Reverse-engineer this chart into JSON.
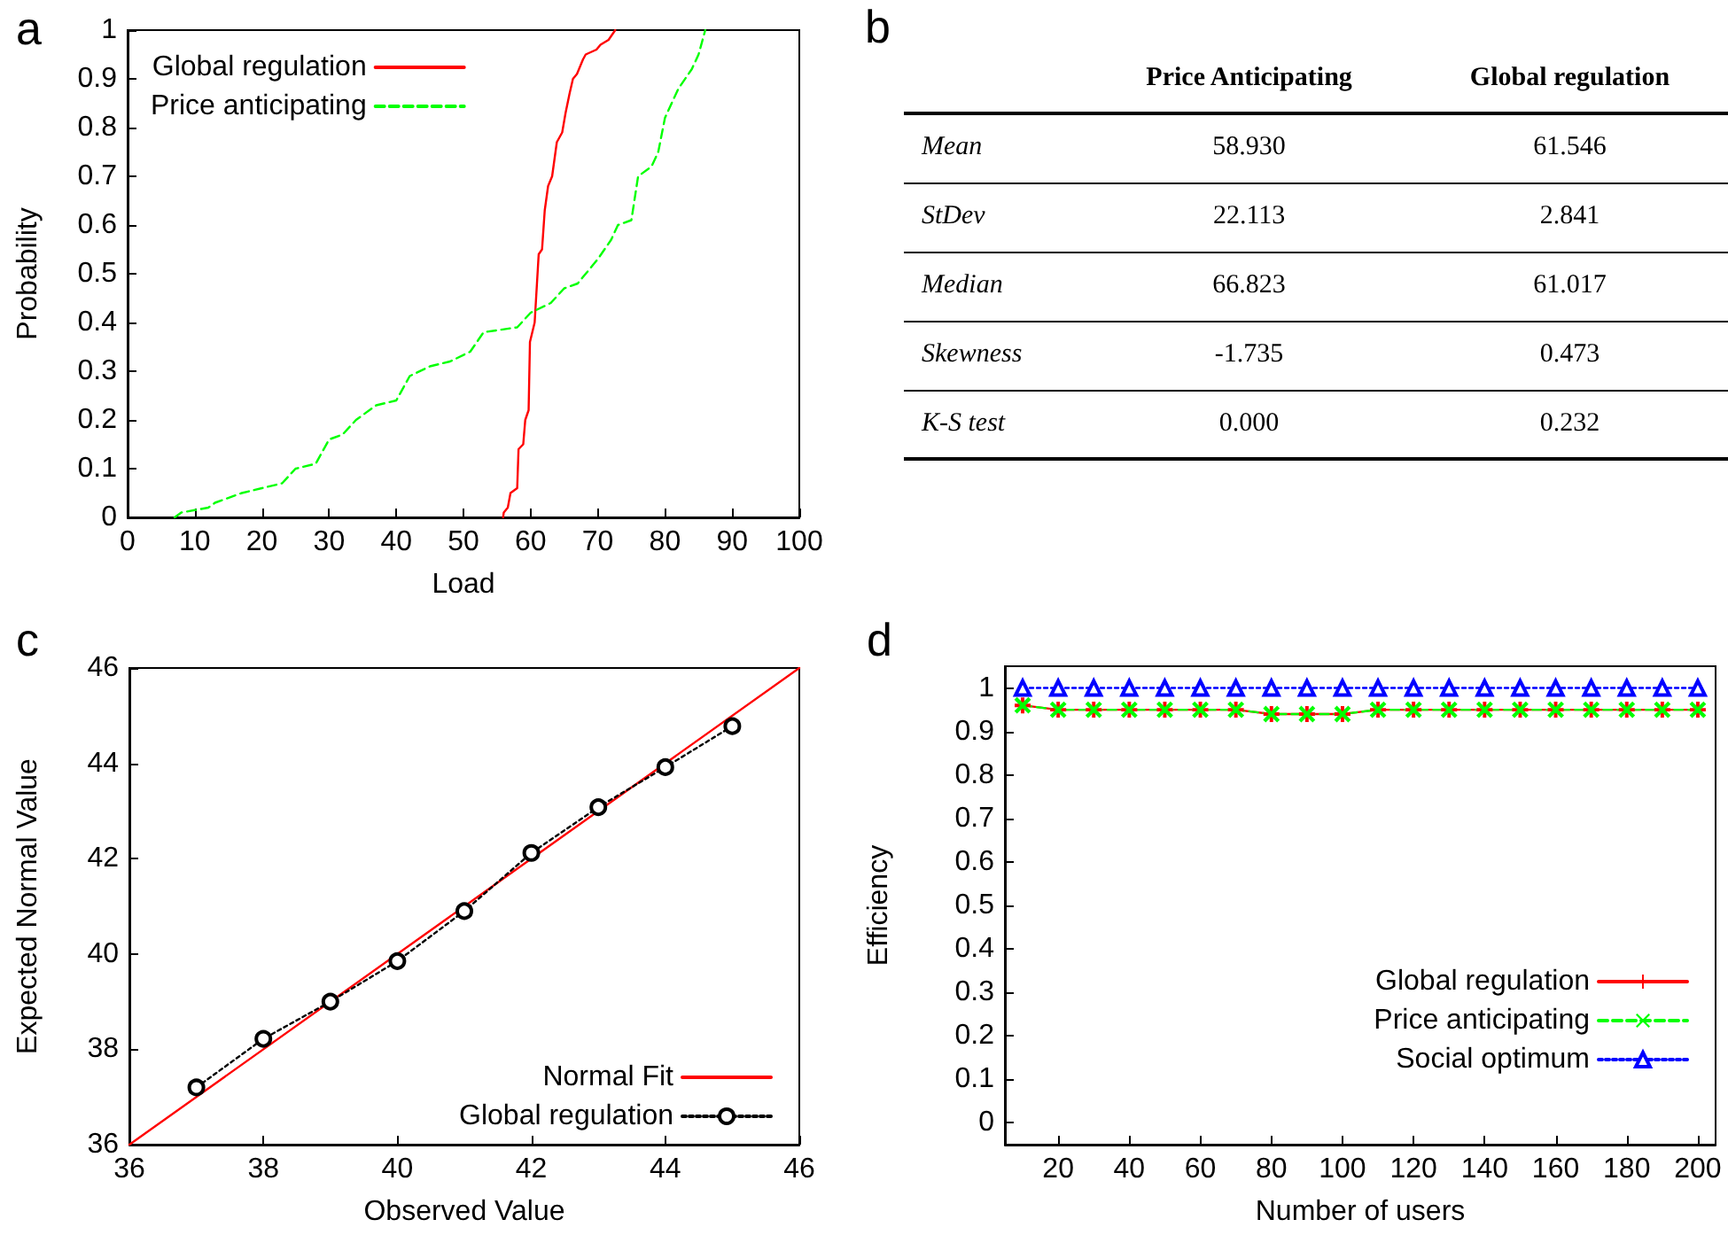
{
  "chart_data": [
    {
      "type": "line",
      "title": "a",
      "xlabel": "Load",
      "ylabel": "Probability",
      "xlim": [
        0,
        100
      ],
      "xticks": [
        0,
        10,
        20,
        30,
        40,
        50,
        60,
        70,
        80,
        90,
        100
      ],
      "ylim": [
        0,
        1
      ],
      "yticks": [
        0,
        0.1,
        0.2,
        0.3,
        0.4,
        0.5,
        0.6,
        0.7,
        0.8,
        0.9,
        1
      ],
      "grid": false,
      "legend": "top left",
      "marker": "none",
      "series": [
        {
          "name": "Global regulation",
          "color": "#ff0000",
          "line_style": "solid",
          "x": [
            55.9,
            56,
            56.6,
            57,
            58,
            58.2,
            58.9,
            59.2,
            59.7,
            59.9,
            60.6,
            61.2,
            61.7,
            62.1,
            62.6,
            63.2,
            63.9,
            64.7,
            65.2,
            65.8,
            66.3,
            66.9,
            67.8,
            68.2,
            69.8,
            70.4,
            71.6,
            72.6
          ],
          "values": [
            0,
            0.01,
            0.02,
            0.05,
            0.06,
            0.14,
            0.15,
            0.2,
            0.22,
            0.36,
            0.4,
            0.54,
            0.55,
            0.63,
            0.68,
            0.7,
            0.77,
            0.79,
            0.83,
            0.87,
            0.9,
            0.91,
            0.94,
            0.95,
            0.96,
            0.97,
            0.98,
            1
          ]
        },
        {
          "name": "Price anticipating",
          "color": "#00ff00",
          "line_style": "dashed",
          "x": [
            7,
            8,
            12,
            13,
            17,
            20,
            23,
            25,
            28,
            30,
            32,
            34,
            37,
            40,
            42,
            45,
            48,
            51,
            53,
            58,
            60,
            63,
            65,
            67,
            70,
            72,
            73,
            75,
            76,
            78,
            79,
            80,
            81,
            82,
            84,
            85,
            86
          ],
          "values": [
            0,
            0.01,
            0.02,
            0.03,
            0.05,
            0.06,
            0.07,
            0.1,
            0.11,
            0.16,
            0.17,
            0.2,
            0.23,
            0.24,
            0.29,
            0.31,
            0.32,
            0.34,
            0.38,
            0.39,
            0.42,
            0.44,
            0.47,
            0.48,
            0.53,
            0.57,
            0.6,
            0.61,
            0.7,
            0.72,
            0.75,
            0.82,
            0.85,
            0.88,
            0.92,
            0.95,
            1
          ]
        }
      ]
    },
    {
      "type": "other",
      "title": "b",
      "categories": [
        "Mean",
        "StDev",
        "Median",
        "Skewness",
        "K-S test"
      ],
      "series": [
        {
          "name": "Price Anticipating",
          "values": [
            58.93,
            22.113,
            66.823,
            -1.735,
            0
          ],
          "value_labels": [
            "58.930",
            "22.113",
            "66.823",
            "-1.735",
            "0.000"
          ]
        },
        {
          "name": "Global regulation",
          "values": [
            61.546,
            2.841,
            61.017,
            0.473,
            0.232
          ],
          "value_labels": [
            "61.546",
            "2.841",
            "61.017",
            "0.473",
            "0.232"
          ]
        }
      ]
    },
    {
      "type": "line",
      "title": "c",
      "xlabel": "Observed Value",
      "ylabel": "Expected Normal Value",
      "xlim": [
        36,
        46
      ],
      "xticks": [
        36,
        38,
        40,
        42,
        44,
        46
      ],
      "ylim": [
        36,
        46
      ],
      "yticks": [
        36,
        38,
        40,
        42,
        44,
        46
      ],
      "grid": false,
      "legend": "bottom right",
      "series": [
        {
          "name": "Normal Fit",
          "color": "#ff0000",
          "line_style": "solid",
          "marker": "none",
          "x": [
            36,
            46
          ],
          "values": [
            36,
            46
          ]
        },
        {
          "name": "Global regulation",
          "color": "#000000",
          "line_style": "dotted",
          "marker": "circle",
          "x": [
            37,
            38,
            39,
            40,
            41,
            42,
            43,
            44,
            45
          ],
          "values": [
            37.2,
            38.22,
            39,
            39.85,
            40.9,
            42.12,
            43.08,
            43.92,
            44.78
          ]
        }
      ]
    },
    {
      "type": "line",
      "title": "d",
      "xlabel": "Number of users",
      "ylabel": "Efficiency",
      "xlim": [
        5,
        205
      ],
      "xticks": [
        20,
        40,
        60,
        80,
        100,
        120,
        140,
        160,
        180,
        200
      ],
      "ylim": [
        -0.05,
        1.05
      ],
      "yticks": [
        0,
        0.1,
        0.2,
        0.3,
        0.4,
        0.5,
        0.6,
        0.7,
        0.8,
        0.9,
        1
      ],
      "grid": false,
      "legend": "right",
      "x": [
        10,
        20,
        30,
        40,
        50,
        60,
        70,
        80,
        90,
        100,
        110,
        120,
        130,
        140,
        150,
        160,
        170,
        180,
        190,
        200
      ],
      "series": [
        {
          "name": "Global regulation",
          "color": "#ff0000",
          "line_style": "solid",
          "marker": "cross",
          "values": [
            0.96,
            0.95,
            0.95,
            0.95,
            0.95,
            0.95,
            0.95,
            0.94,
            0.94,
            0.94,
            0.95,
            0.95,
            0.95,
            0.95,
            0.95,
            0.95,
            0.95,
            0.95,
            0.95,
            0.95
          ]
        },
        {
          "name": "Price anticipating",
          "color": "#00ff00",
          "line_style": "dashed",
          "marker": "cross",
          "values": [
            0.96,
            0.95,
            0.95,
            0.95,
            0.95,
            0.95,
            0.95,
            0.94,
            0.94,
            0.94,
            0.95,
            0.95,
            0.95,
            0.95,
            0.95,
            0.95,
            0.95,
            0.95,
            0.95,
            0.95
          ]
        },
        {
          "name": "Social optimum",
          "color": "#0000ff",
          "line_style": "dotted",
          "marker": "triangle",
          "values": [
            1,
            1,
            1,
            1,
            1,
            1,
            1,
            1,
            1,
            1,
            1,
            1,
            1,
            1,
            1,
            1,
            1,
            1,
            1,
            1
          ]
        }
      ]
    }
  ]
}
